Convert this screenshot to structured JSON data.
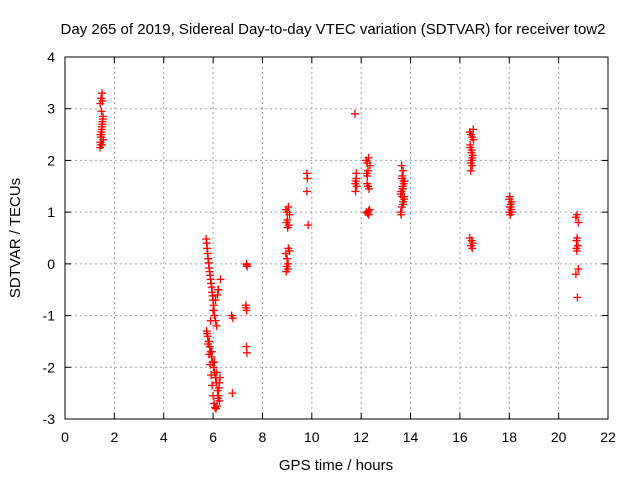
{
  "chart_data": {
    "type": "scatter",
    "title": "Day 265 of 2019, Sidereal Day-to-day VTEC variation (SDTVAR) for receiver tow2",
    "xlabel": "GPS time / hours",
    "ylabel": "SDTVAR / TECUs",
    "xlim": [
      0,
      22
    ],
    "ylim": [
      -3,
      4
    ],
    "xticks": [
      "0",
      "2",
      "4",
      "6",
      "8",
      "10",
      "12",
      "14",
      "16",
      "18",
      "20",
      "22"
    ],
    "yticks": [
      "-3",
      "-2",
      "-1",
      "0",
      "1",
      "2",
      "3",
      "4"
    ],
    "grid": true,
    "marker": "+",
    "color": "#ff0000",
    "series": [
      {
        "name": "SDTVAR",
        "x": [
          1.42,
          1.44,
          1.46,
          1.48,
          1.5,
          1.52,
          1.54,
          1.45,
          1.47,
          1.49,
          1.51,
          1.53,
          1.55,
          1.43,
          1.46,
          1.5,
          1.52,
          1.48,
          1.44,
          1.5,
          5.72,
          5.74,
          5.76,
          5.78,
          5.8,
          5.82,
          5.84,
          5.86,
          5.88,
          5.9,
          5.92,
          5.94,
          5.96,
          5.98,
          6.0,
          6.02,
          6.04,
          6.06,
          6.1,
          6.14,
          6.18,
          6.22,
          5.74,
          5.78,
          5.82,
          5.86,
          5.9,
          5.94,
          5.98,
          6.02,
          6.06,
          6.1,
          6.14,
          6.18,
          6.22,
          6.26,
          5.76,
          5.8,
          5.84,
          5.88,
          5.92,
          5.96,
          6.0,
          6.04,
          6.08,
          6.12,
          6.16,
          6.2,
          6.24,
          6.28,
          5.9,
          6.0,
          6.1,
          6.2,
          6.3,
          5.85,
          5.95,
          6.05,
          6.15,
          6.25,
          6.8,
          6.75,
          6.78,
          7.35,
          7.38,
          7.33,
          7.36,
          7.35,
          7.37,
          7.34,
          7.36,
          8.95,
          9.0,
          9.05,
          9.1,
          8.97,
          9.02,
          9.07,
          8.95,
          9.0,
          9.05,
          9.1,
          8.98,
          9.03,
          8.96,
          9.04,
          9.01,
          9.8,
          9.82,
          9.8,
          9.85,
          11.75,
          11.78,
          11.8,
          11.82,
          11.77,
          11.8,
          11.76,
          12.2,
          12.25,
          12.3,
          12.35,
          12.22,
          12.28,
          12.32,
          12.24,
          12.3,
          12.26,
          12.2,
          12.34,
          12.3,
          12.25,
          12.28,
          13.6,
          13.65,
          13.7,
          13.75,
          13.62,
          13.68,
          13.72,
          13.66,
          13.7,
          13.64,
          13.74,
          13.6,
          13.68,
          13.72,
          13.65,
          13.7,
          13.62,
          13.76,
          13.66,
          13.7,
          16.4,
          16.45,
          16.5,
          16.55,
          16.42,
          16.48,
          16.52,
          16.46,
          16.5,
          16.44,
          16.54,
          16.4,
          16.48,
          16.52,
          16.45,
          16.5,
          16.42,
          16.47,
          16.5,
          16.44,
          18.0,
          18.05,
          18.1,
          18.02,
          18.08,
          18.04,
          18.06,
          18.0,
          18.1,
          18.03,
          20.7,
          20.75,
          20.8,
          20.72,
          20.78,
          20.74,
          20.8,
          20.7,
          20.76,
          20.75,
          20.72
        ],
        "y": [
          2.25,
          2.35,
          2.45,
          2.55,
          2.65,
          2.75,
          2.85,
          2.3,
          2.5,
          2.6,
          2.7,
          2.8,
          2.4,
          3.1,
          3.2,
          3.3,
          3.15,
          2.95,
          2.5,
          2.3,
          0.48,
          0.4,
          0.3,
          0.2,
          0.1,
          0.02,
          -0.08,
          -0.15,
          -0.22,
          -0.3,
          -0.38,
          -0.45,
          -0.55,
          -0.62,
          -0.7,
          -0.8,
          -0.9,
          -1.0,
          -1.1,
          -1.2,
          -0.6,
          -0.5,
          -1.3,
          -1.4,
          -1.5,
          -1.6,
          -1.7,
          -1.8,
          -1.9,
          -2.0,
          -2.1,
          -2.2,
          -2.3,
          -2.45,
          -2.55,
          -2.65,
          -1.35,
          -1.55,
          -1.75,
          -1.95,
          -2.15,
          -2.35,
          -2.55,
          -2.7,
          -2.78,
          -2.8,
          -2.75,
          -2.6,
          -2.4,
          -2.2,
          -1.1,
          -0.9,
          -0.7,
          -0.5,
          -0.3,
          -1.5,
          -1.7,
          -1.9,
          -2.1,
          -2.3,
          -1.05,
          -1.0,
          -2.5,
          0.0,
          -0.05,
          -0.8,
          -0.9,
          -1.6,
          -1.72,
          -0.85,
          -0.02,
          1.05,
          1.0,
          1.1,
          0.95,
          0.8,
          0.7,
          0.75,
          0.2,
          0.1,
          0.3,
          0.25,
          -0.05,
          -0.1,
          -0.15,
          0.0,
          0.85,
          1.4,
          1.65,
          1.75,
          0.75,
          2.9,
          1.6,
          1.75,
          1.5,
          1.4,
          1.65,
          1.55,
          2.0,
          1.95,
          2.05,
          1.9,
          1.75,
          1.5,
          1.45,
          1.55,
          1.02,
          0.98,
          1.0,
          1.05,
          0.95,
          1.7,
          1.8,
          1.0,
          1.1,
          1.2,
          1.3,
          1.4,
          1.5,
          1.6,
          1.7,
          1.8,
          1.9,
          1.25,
          1.35,
          1.45,
          1.55,
          1.65,
          1.15,
          0.95,
          1.6,
          1.3,
          1.45,
          2.55,
          2.5,
          2.45,
          2.4,
          2.3,
          2.2,
          2.1,
          2.0,
          1.9,
          1.8,
          2.6,
          0.5,
          0.45,
          0.4,
          0.35,
          0.3,
          2.25,
          2.15,
          2.05,
          1.95,
          1.0,
          1.1,
          1.2,
          1.3,
          1.05,
          0.95,
          1.15,
          1.25,
          1.0,
          1.1,
          0.9,
          0.95,
          0.8,
          0.45,
          0.35,
          0.25,
          -0.1,
          -0.2,
          -0.65,
          0.5,
          0.3
        ]
      }
    ]
  }
}
